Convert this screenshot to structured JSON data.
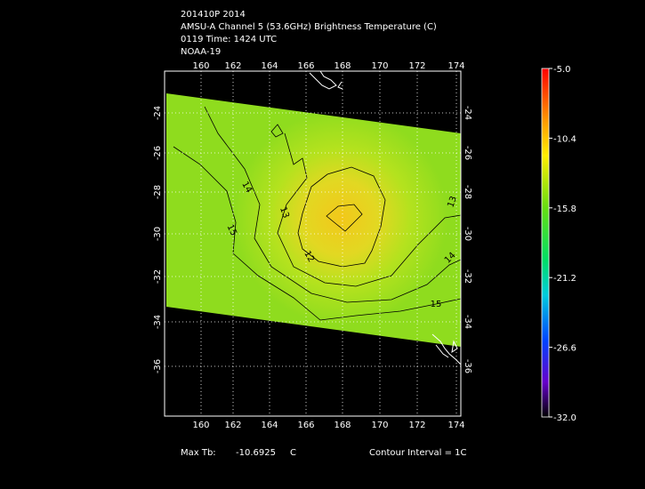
{
  "header": {
    "lines": [
      "201410P 2014",
      "AMSU-A Channel 5 (53.6GHz) Brightness Temperature (C)",
      "0119 Time: 1424 UTC",
      "NOAA-19"
    ]
  },
  "map": {
    "lon_labels": [
      "160",
      "162",
      "164",
      "166",
      "168",
      "170",
      "172",
      "174"
    ],
    "lat_labels": [
      "-24",
      "-26",
      "-28",
      "-30",
      "-32",
      "-34",
      "-36"
    ],
    "contour_labels": [
      "14",
      "15",
      "13",
      "12",
      "13",
      "14",
      "15"
    ]
  },
  "colorbar": {
    "labels": [
      "-5.0",
      "-10.4",
      "-15.8",
      "-21.2",
      "-26.6",
      "-32.0"
    ]
  },
  "footer": {
    "max_tb_label": "Max Tb:",
    "max_tb_value": "-10.6925",
    "max_tb_unit": "C",
    "contour_interval": "Contour Interval = 1C"
  }
}
